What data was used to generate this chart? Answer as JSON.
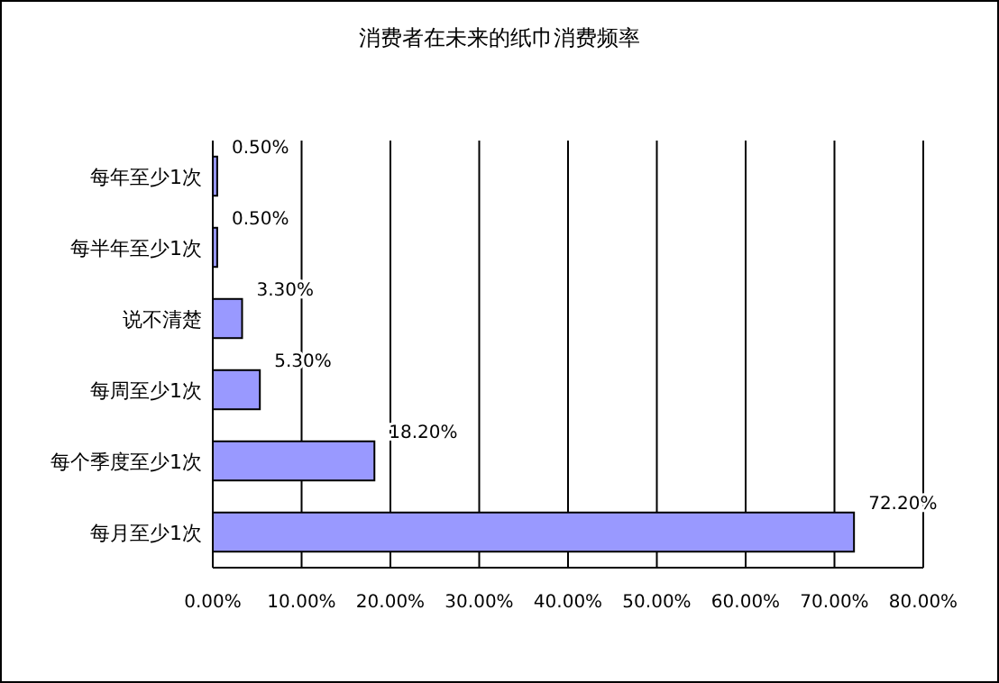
{
  "chart_data": {
    "type": "bar",
    "orientation": "horizontal",
    "title": "消费者在未来的纸巾消费频率",
    "categories": [
      "每年至少1次",
      "每半年至少1次",
      "说不清楚",
      "每周至少1次",
      "每个季度至少1次",
      "每月至少1次"
    ],
    "values": [
      0.5,
      0.5,
      3.3,
      5.3,
      18.2,
      72.2
    ],
    "value_labels": [
      "0.50%",
      "0.50%",
      "3.30%",
      "5.30%",
      "18.20%",
      "72.20%"
    ],
    "color": "#9999ff",
    "xlim": [
      0,
      80
    ],
    "xticks": [
      {
        "value": 0,
        "label": "0.00%"
      },
      {
        "value": 10,
        "label": "10.00%"
      },
      {
        "value": 20,
        "label": "20.00%"
      },
      {
        "value": 30,
        "label": "30.00%"
      },
      {
        "value": 40,
        "label": "40.00%"
      },
      {
        "value": 50,
        "label": "50.00%"
      },
      {
        "value": 60,
        "label": "60.00%"
      },
      {
        "value": 70,
        "label": "70.00%"
      },
      {
        "value": 80,
        "label": "80.00%"
      }
    ],
    "grid": "x"
  }
}
